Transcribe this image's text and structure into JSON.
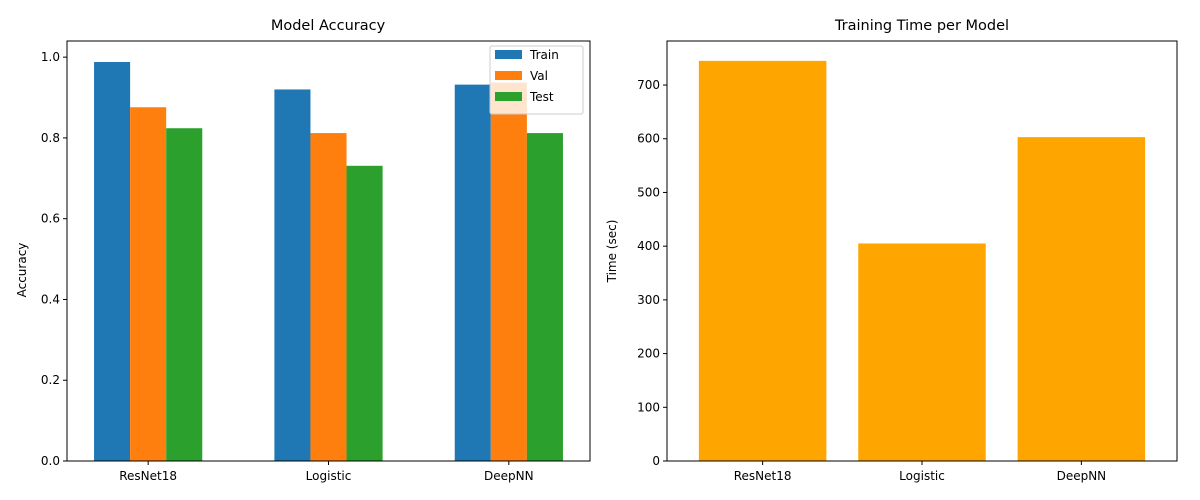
{
  "chart_data": [
    {
      "type": "bar",
      "title": "Model Accuracy",
      "xlabel": "",
      "ylabel": "Accuracy",
      "categories": [
        "ResNet18",
        "Logistic",
        "DeepNN"
      ],
      "series": [
        {
          "name": "Train",
          "color": "#1f77b4",
          "values": [
            0.988,
            0.92,
            0.932
          ]
        },
        {
          "name": "Val",
          "color": "#ff7f0e",
          "values": [
            0.876,
            0.812,
            0.937
          ]
        },
        {
          "name": "Test",
          "color": "#2ca02c",
          "values": [
            0.824,
            0.731,
            0.812
          ]
        }
      ],
      "ylim": [
        0,
        1.04
      ],
      "yticks": [
        0.0,
        0.2,
        0.4,
        0.6,
        0.8,
        1.0
      ],
      "ytick_labels": [
        "0.0",
        "0.2",
        "0.4",
        "0.6",
        "0.8",
        "1.0"
      ],
      "legend_position": "top-right",
      "grid": false
    },
    {
      "type": "bar",
      "title": "Training Time per Model",
      "xlabel": "",
      "ylabel": "Time (sec)",
      "categories": [
        "ResNet18",
        "Logistic",
        "DeepNN"
      ],
      "series": [
        {
          "color": "#ffa500",
          "values": [
            745,
            405,
            603
          ]
        }
      ],
      "ylim": [
        0,
        782
      ],
      "yticks": [
        0,
        100,
        200,
        300,
        400,
        500,
        600,
        700
      ],
      "ytick_labels": [
        "0",
        "100",
        "200",
        "300",
        "400",
        "500",
        "600",
        "700"
      ],
      "grid": false
    }
  ]
}
